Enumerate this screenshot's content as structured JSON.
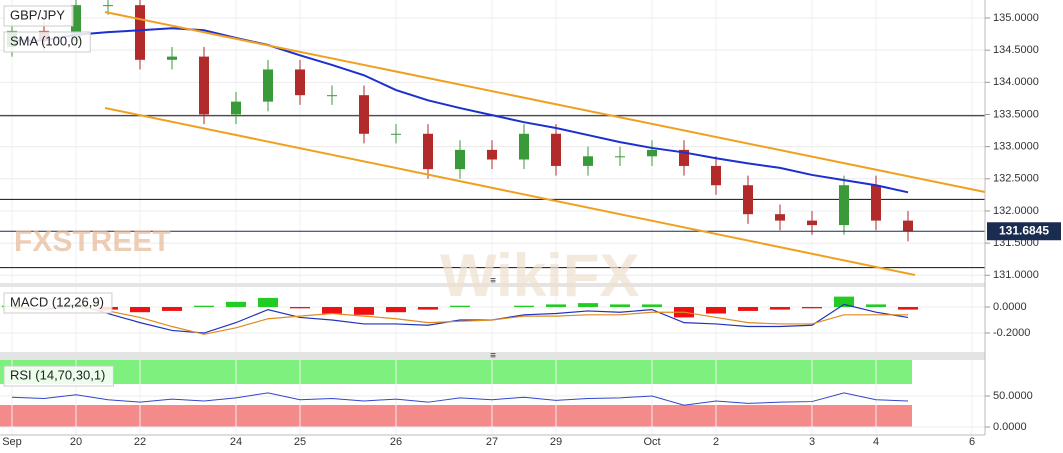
{
  "chart_data": [
    {
      "type": "candlestick",
      "title": "GBP/JPY",
      "categories": [
        "Sep",
        null,
        "20",
        null,
        "22",
        null,
        null,
        "24",
        null,
        "25",
        null,
        null,
        "26",
        null,
        null,
        "27",
        null,
        "29",
        null,
        null,
        "Oct",
        null,
        "2",
        null,
        null,
        "3",
        null,
        "4",
        null,
        null,
        "6"
      ],
      "open": [
        134.55,
        134.8,
        134.65,
        135.2,
        135.2,
        134.35,
        134.4,
        133.5,
        133.7,
        134.2,
        133.8,
        133.8,
        133.2,
        133.2,
        132.65,
        132.95,
        132.8,
        133.2,
        132.7,
        132.85,
        132.85,
        132.95,
        132.7,
        132.4,
        131.95,
        131.85,
        131.78,
        132.4,
        131.85,
        null,
        null
      ],
      "high": [
        134.95,
        134.95,
        135.35,
        135.35,
        135.35,
        134.55,
        134.55,
        133.85,
        134.35,
        134.35,
        133.95,
        133.95,
        133.35,
        133.35,
        133.1,
        133.1,
        133.35,
        133.35,
        133.0,
        133.0,
        133.1,
        133.1,
        132.85,
        132.55,
        132.1,
        132.0,
        132.55,
        132.55,
        132.0,
        null,
        null
      ],
      "low": [
        134.4,
        134.5,
        134.5,
        135.05,
        134.2,
        134.2,
        133.35,
        133.35,
        133.55,
        133.65,
        133.65,
        133.05,
        133.05,
        132.5,
        132.5,
        132.65,
        132.65,
        132.55,
        132.55,
        132.7,
        132.7,
        132.55,
        132.25,
        131.8,
        131.7,
        131.63,
        131.63,
        131.7,
        131.53,
        null,
        null
      ],
      "close": [
        134.8,
        134.65,
        135.2,
        135.2,
        134.35,
        134.4,
        133.5,
        133.7,
        134.2,
        133.8,
        133.8,
        133.2,
        133.2,
        132.65,
        132.95,
        132.8,
        133.2,
        132.7,
        132.85,
        132.85,
        132.95,
        132.7,
        132.4,
        131.95,
        131.85,
        131.78,
        132.4,
        131.85,
        131.6845,
        null,
        null
      ],
      "up_color": "#3a9a3a",
      "down_color": "#b22a2a",
      "series": [
        {
          "name": "SMA (100,0)",
          "color": "#1c2fd0",
          "values": [
            134.65,
            134.65,
            134.74,
            134.78,
            134.81,
            134.84,
            134.81,
            134.69,
            134.58,
            134.42,
            134.27,
            134.11,
            133.88,
            133.72,
            133.6,
            133.49,
            133.38,
            133.29,
            133.18,
            133.07,
            132.98,
            132.91,
            132.82,
            132.74,
            132.67,
            132.56,
            132.48,
            132.4,
            132.29,
            null,
            null
          ]
        }
      ],
      "levels": [
        133.48,
        132.18,
        131.12
      ],
      "last_price": 131.6845,
      "ylim": [
        130.88,
        135.28
      ],
      "yticks": [
        {
          "value": 131,
          "label": "131.0000"
        },
        {
          "value": 131.5,
          "label": "131.5000"
        },
        {
          "value": 132,
          "label": "132.0000"
        },
        {
          "value": 132.5,
          "label": "132.5000"
        },
        {
          "value": 133,
          "label": "133.0000"
        },
        {
          "value": 133.5,
          "label": "133.5000"
        },
        {
          "value": 134,
          "label": "134.0000"
        },
        {
          "value": 134.5,
          "label": "134.5000"
        },
        {
          "value": 135,
          "label": "135.0000"
        }
      ],
      "watermarks": [
        "FXSTREET",
        "WikiFX"
      ],
      "grid": true
    },
    {
      "type": "macd",
      "title": "MACD (12,26,9)",
      "histogram": [
        0.01,
        0.0,
        0.02,
        -0.02,
        -0.04,
        -0.03,
        0.01,
        0.04,
        0.07,
        -0.01,
        -0.05,
        -0.06,
        -0.04,
        -0.02,
        0.01,
        0.0,
        0.01,
        0.02,
        0.03,
        0.02,
        0.02,
        -0.08,
        -0.05,
        -0.03,
        -0.02,
        -0.01,
        0.08,
        0.02,
        -0.02,
        null,
        null
      ],
      "up_color": "#22cc22",
      "down_color": "#ee1111",
      "lines": [
        {
          "color": "#2233bb",
          "values": [
            0.0,
            -0.02,
            0.02,
            -0.05,
            -0.12,
            -0.18,
            -0.2,
            -0.12,
            -0.02,
            -0.08,
            -0.1,
            -0.13,
            -0.13,
            -0.14,
            -0.1,
            -0.1,
            -0.06,
            -0.05,
            -0.03,
            -0.04,
            -0.02,
            -0.12,
            -0.13,
            -0.15,
            -0.15,
            -0.14,
            0.02,
            -0.04,
            -0.08,
            null,
            null
          ]
        },
        {
          "color": "#e08a1e",
          "values": [
            -0.01,
            -0.02,
            0.0,
            -0.03,
            -0.08,
            -0.15,
            -0.21,
            -0.16,
            -0.09,
            -0.07,
            -0.05,
            -0.07,
            -0.09,
            -0.12,
            -0.11,
            -0.1,
            -0.07,
            -0.07,
            -0.06,
            -0.06,
            -0.04,
            -0.04,
            -0.08,
            -0.12,
            -0.13,
            -0.13,
            -0.06,
            -0.06,
            -0.06,
            null,
            null
          ]
        }
      ],
      "ylim": [
        -0.346,
        0.154
      ],
      "yticks": [
        {
          "value": -0.2,
          "label": "-0.2000"
        },
        {
          "value": 0,
          "label": "0.0000"
        }
      ],
      "grid": true
    },
    {
      "type": "line",
      "title": "RSI (14,70,30,1)",
      "color": "#3344cc",
      "values": [
        48,
        46,
        52,
        44,
        40,
        45,
        42,
        47,
        55,
        44,
        46,
        42,
        45,
        40,
        47,
        44,
        48,
        43,
        46,
        47,
        50,
        35,
        42,
        38,
        40,
        41,
        55,
        44,
        42,
        null,
        null
      ],
      "ylim": [
        -12.9,
        108
      ],
      "yticks": [
        {
          "value": 0,
          "label": "0.0000"
        },
        {
          "value": 50,
          "label": "50.0000"
        }
      ],
      "grid": true
    }
  ]
}
